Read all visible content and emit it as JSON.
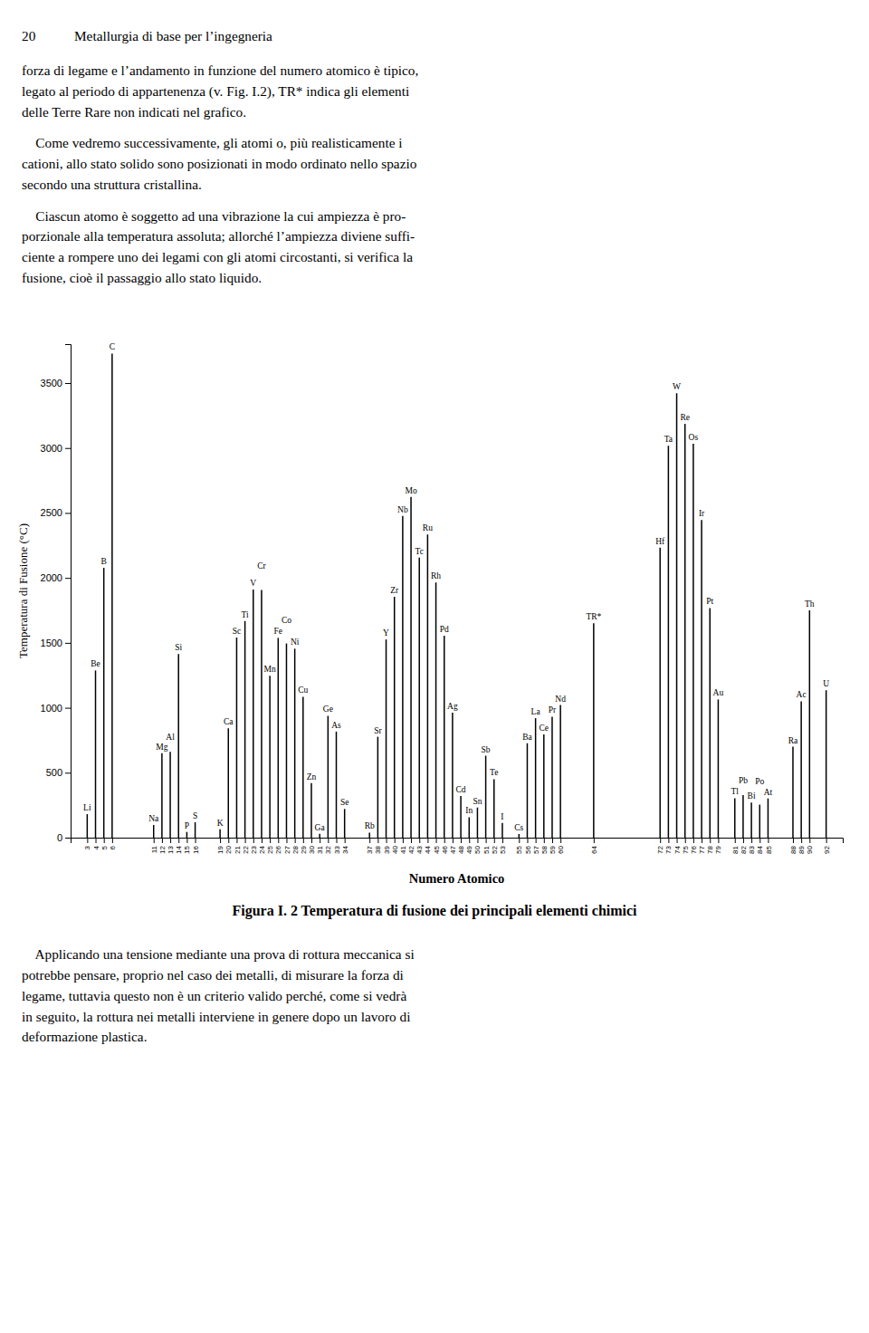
{
  "page": {
    "header": [
      "20",
      "Metallurgia di base per l’ingegneria"
    ],
    "paragraphs_before": [
      [
        "forza di legame e l’andamento in funzione del numero atomico è tipico,",
        "legato al periodo di appartenenza (v. Fig. I.2), TR* indica gli elementi",
        "delle Terre Rare non indicati nel grafico."
      ],
      [
        "    Come vedremo successivamente, gli atomi o, più realisticamente i",
        "cationi, allo stato solido sono posizionati in modo ordinato nello spazio",
        "secondo una struttura cristallina."
      ],
      [
        "    Ciascun atomo è soggetto ad una vibrazione la cui ampiezza è pro-",
        "porzionale alla temperatura assoluta; allorché l’ampiezza diviene suffi-",
        "ciente a rompere uno dei legami con gli atomi circostanti, si verifica la",
        "fusione, cioè il passaggio allo stato liquido."
      ]
    ],
    "paragraphs_after": [
      [
        "    Applicando una tensione mediante una prova di rottura meccanica si",
        "potrebbe pensare, proprio nel caso dei metalli, di misurare la forza di",
        "legame, tuttavia questo non è un criterio valido perché, come si vedrà",
        "in seguito, la rottura nei metalli interviene in genere dopo un lavoro di",
        "deformazione plastica."
      ]
    ]
  },
  "chart_data": {
    "type": "bar",
    "title": "Figura I. 2 Temperatura di fusione dei principali elementi chimici",
    "x_label": "Numero Atomico",
    "y_label": "Temperatura di Fusione (°C)",
    "color": "#000000",
    "grid": false,
    "x": [
      3,
      4,
      5,
      6,
      11,
      12,
      13,
      14,
      15,
      16,
      19,
      20,
      21,
      22,
      23,
      24,
      25,
      26,
      27,
      28,
      29,
      30,
      31,
      32,
      33,
      34,
      37,
      38,
      39,
      40,
      41,
      42,
      43,
      44,
      45,
      46,
      47,
      48,
      49,
      50,
      51,
      52,
      53,
      55,
      56,
      57,
      58,
      59,
      60,
      64,
      72,
      73,
      74,
      75,
      76,
      77,
      78,
      79,
      81,
      82,
      83,
      84,
      85,
      88,
      89,
      90,
      92
    ],
    "values": [
      181,
      1287,
      2077,
      3727,
      98,
      650,
      660,
      1414,
      44,
      119,
      64,
      842,
      1541,
      1668,
      1910,
      1907,
      1246,
      1538,
      1495,
      1455,
      1085,
      420,
      30,
      938,
      817,
      221,
      39,
      777,
      1526,
      1855,
      2477,
      2623,
      2157,
      2334,
      1964,
      1555,
      962,
      321,
      157,
      232,
      631,
      450,
      114,
      28,
      727,
      920,
      795,
      931,
      1021,
      1650,
      2233,
      3017,
      3422,
      3186,
      3033,
      2446,
      1768,
      1064,
      304,
      327,
      271,
      254,
      302,
      700,
      1050,
      1750,
      1135
    ],
    "annotations": [
      "Li",
      "Be",
      "B",
      "C",
      "Na",
      "Mg",
      "Al",
      "Si",
      "P",
      "S",
      "K",
      "Ca",
      "Sc",
      "Ti",
      "V",
      "Cr",
      "Mn",
      "Fe",
      "Co",
      "Ni",
      "Cu",
      "Zn",
      "Ga",
      "Ge",
      "As",
      "Se",
      "Rb",
      "Sr",
      "Y",
      "Zr",
      "Nb",
      "Mo",
      "Tc",
      "Ru",
      "Rh",
      "Pd",
      "Ag",
      "Cd",
      "In",
      "Sn",
      "Sb",
      "Te",
      "I",
      "Cs",
      "Ba",
      "La",
      "Ce",
      "Pr",
      "Nd",
      "TR*",
      "Hf",
      "Ta",
      "W",
      "Re",
      "Os",
      "Ir",
      "Pt",
      "Au",
      "Tl",
      "Pb",
      "Bi",
      "Po",
      "At",
      "Ra",
      "Ac",
      "Th",
      "U"
    ],
    "xlim": [
      1,
      94
    ],
    "xticks": [
      3,
      4,
      5,
      6,
      11,
      12,
      13,
      14,
      15,
      16,
      19,
      20,
      21,
      22,
      23,
      24,
      25,
      26,
      27,
      28,
      29,
      30,
      31,
      32,
      33,
      34,
      37,
      38,
      39,
      40,
      41,
      42,
      43,
      44,
      45,
      46,
      47,
      48,
      49,
      50,
      51,
      52,
      53,
      55,
      56,
      57,
      58,
      59,
      60,
      64,
      72,
      73,
      74,
      75,
      76,
      77,
      78,
      79,
      81,
      82,
      83,
      84,
      85,
      88,
      89,
      90,
      92
    ],
    "ylim": [
      0,
      3800
    ],
    "yticks": [
      0,
      500,
      1000,
      1500,
      2000,
      2500,
      3000,
      3500
    ]
  }
}
